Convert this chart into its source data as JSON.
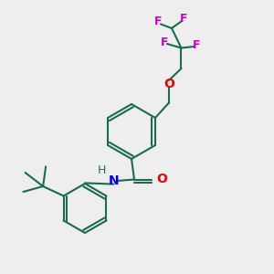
{
  "bg_color": "#eeeeee",
  "bond_color": "#1a6b50",
  "N_color": "#0000ee",
  "O_color": "#ee0000",
  "F_color": "#cc00cc",
  "H_color": "#336666",
  "line_width": 1.5,
  "font_size_atom": 9,
  "fig_w": 3.0,
  "fig_h": 3.0,
  "dpi": 100,
  "xlim": [
    0,
    10
  ],
  "ylim": [
    0,
    10
  ]
}
